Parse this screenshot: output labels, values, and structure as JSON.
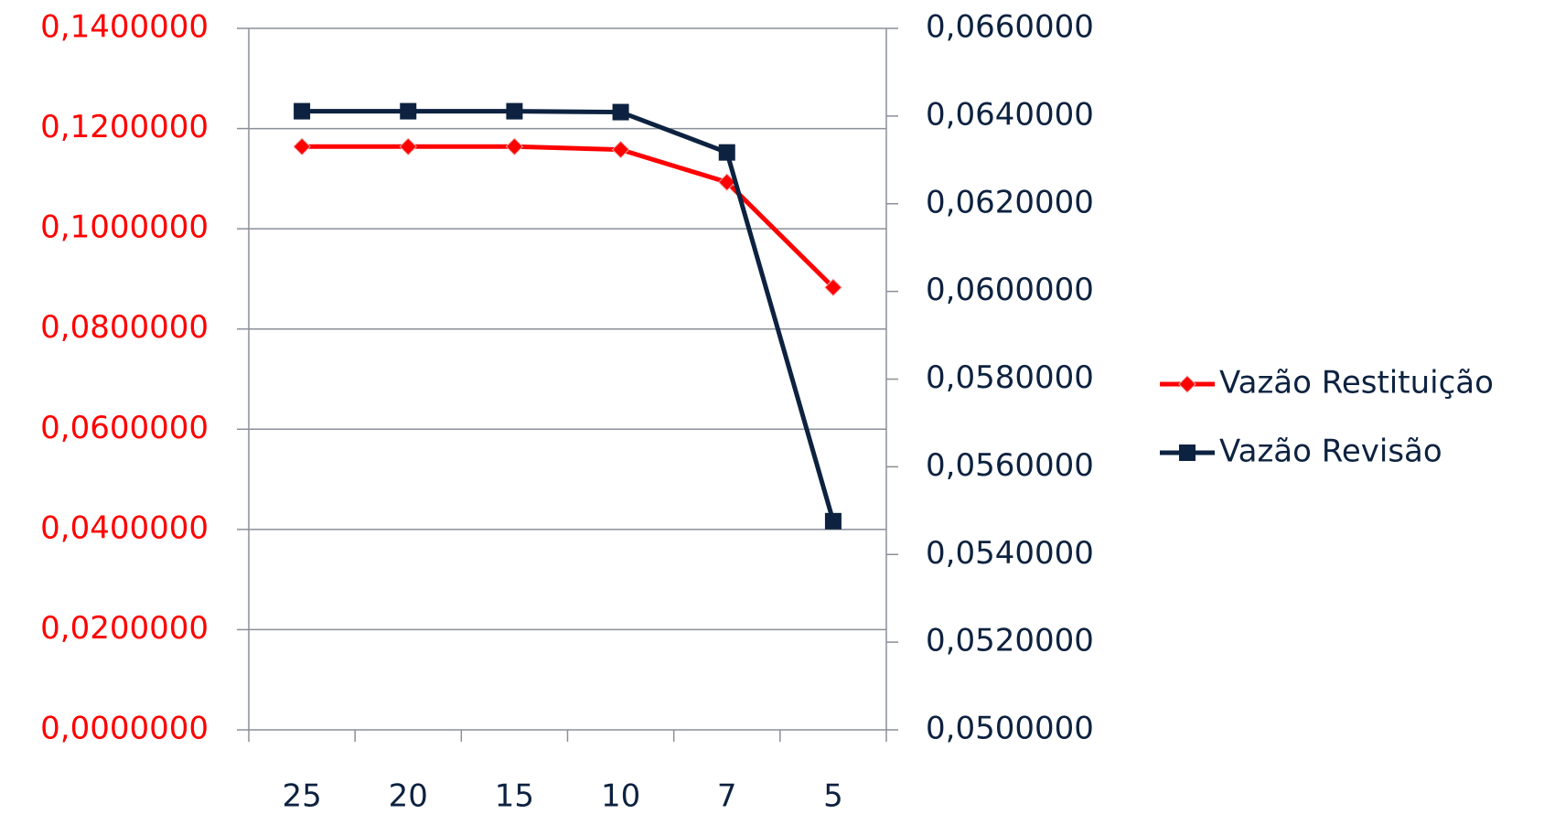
{
  "chart_data": {
    "type": "line",
    "categories": [
      "25",
      "20",
      "15",
      "10",
      "7",
      "5"
    ],
    "series": [
      {
        "name": "Vazão Restituição",
        "color": "#ff0000",
        "marker": "diamond",
        "axis": "y",
        "values": [
          0.1164,
          0.1164,
          0.1164,
          0.1158,
          0.1093,
          0.0883
        ]
      },
      {
        "name": "Vazão Revisão",
        "color": "#0d2240",
        "marker": "square",
        "axis": "y2",
        "values": [
          0.06411,
          0.06411,
          0.06411,
          0.06409,
          0.06317,
          0.05476
        ]
      }
    ],
    "ylim": [
      0,
      0.14
    ],
    "yticks": [
      {
        "value": 0,
        "label": "0,0000000"
      },
      {
        "value": 0.02,
        "label": "0,0200000"
      },
      {
        "value": 0.04,
        "label": "0,0400000"
      },
      {
        "value": 0.06,
        "label": "0,0600000"
      },
      {
        "value": 0.08,
        "label": "0,0800000"
      },
      {
        "value": 0.1,
        "label": "0,1000000"
      },
      {
        "value": 0.12,
        "label": "0,1200000"
      },
      {
        "value": 0.14,
        "label": "0,1400000"
      }
    ],
    "y2lim": [
      0.05,
      0.066
    ],
    "y2ticks": [
      {
        "value": 0.05,
        "label": "0,0500000"
      },
      {
        "value": 0.052,
        "label": "0,0520000"
      },
      {
        "value": 0.054,
        "label": "0,0540000"
      },
      {
        "value": 0.056,
        "label": "0,0560000"
      },
      {
        "value": 0.058,
        "label": "0,0580000"
      },
      {
        "value": 0.06,
        "label": "0,0600000"
      },
      {
        "value": 0.062,
        "label": "0,0620000"
      },
      {
        "value": 0.064,
        "label": "0,0640000"
      },
      {
        "value": 0.066,
        "label": "0,0660000"
      }
    ],
    "yaxis_color": "#ff0000",
    "y2axis_color": "#0d2240",
    "grid": true,
    "legend": "right"
  }
}
